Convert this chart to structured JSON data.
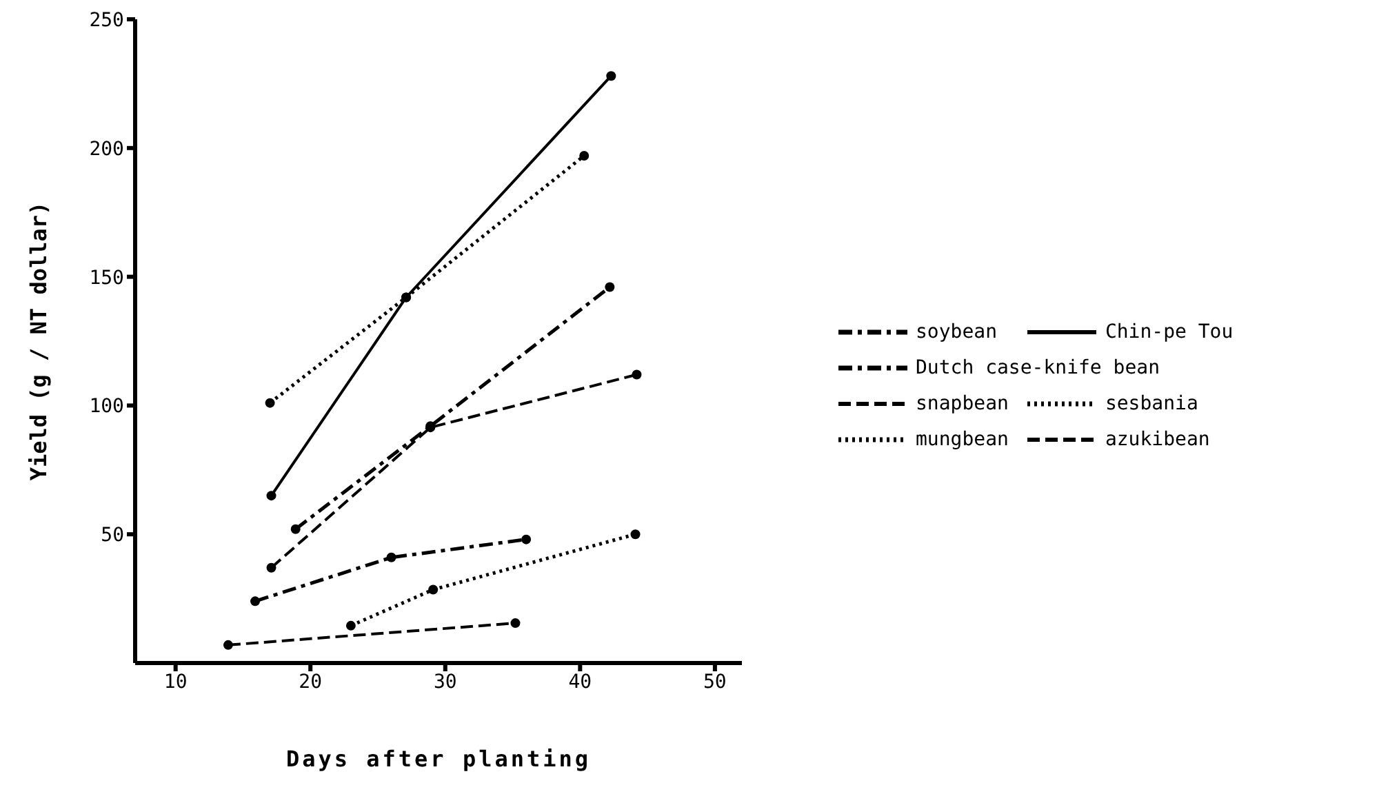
{
  "chart_data": {
    "type": "line",
    "xlabel": "Days after planting",
    "ylabel": "Yield (g / NT dollar)",
    "xlim": [
      7,
      52
    ],
    "xticks": [
      10,
      20,
      30,
      40,
      50
    ],
    "ylim": [
      0,
      250
    ],
    "yticks": [
      50,
      100,
      150,
      200,
      250
    ],
    "legend": "right",
    "marker": "circle",
    "series": [
      {
        "name": "soybean",
        "color": "#000000",
        "line_style": "dashdot",
        "x": [
          15.9,
          26,
          36
        ],
        "values": [
          24,
          41,
          48
        ]
      },
      {
        "name": "Chin-pe Tou",
        "color": "#000000",
        "line_style": "solid",
        "x": [
          17.1,
          27.1,
          42.3
        ],
        "values": [
          65,
          142,
          228
        ]
      },
      {
        "name": "Dutch case-knife bean",
        "color": "#000000",
        "line_style": "dashdot",
        "x": [
          18.9,
          28.9,
          42.2
        ],
        "values": [
          52,
          92,
          146
        ]
      },
      {
        "name": "snapbean",
        "color": "#000000",
        "line_style": "dashed",
        "x": [
          13.9,
          35.2
        ],
        "values": [
          7,
          15.5
        ]
      },
      {
        "name": "sesbania",
        "color": "#000000",
        "line_style": "dotted",
        "x": [
          23,
          29.1,
          44.1
        ],
        "values": [
          14.5,
          28.5,
          50
        ]
      },
      {
        "name": "mungbean",
        "color": "#000000",
        "line_style": "dotted",
        "x": [
          17,
          27.1,
          40.3
        ],
        "values": [
          101,
          142,
          197
        ]
      },
      {
        "name": "azukibean",
        "color": "#000000",
        "line_style": "dashed",
        "x": [
          17.1,
          28.9,
          44.2
        ],
        "values": [
          37,
          91.5,
          112
        ]
      }
    ]
  }
}
